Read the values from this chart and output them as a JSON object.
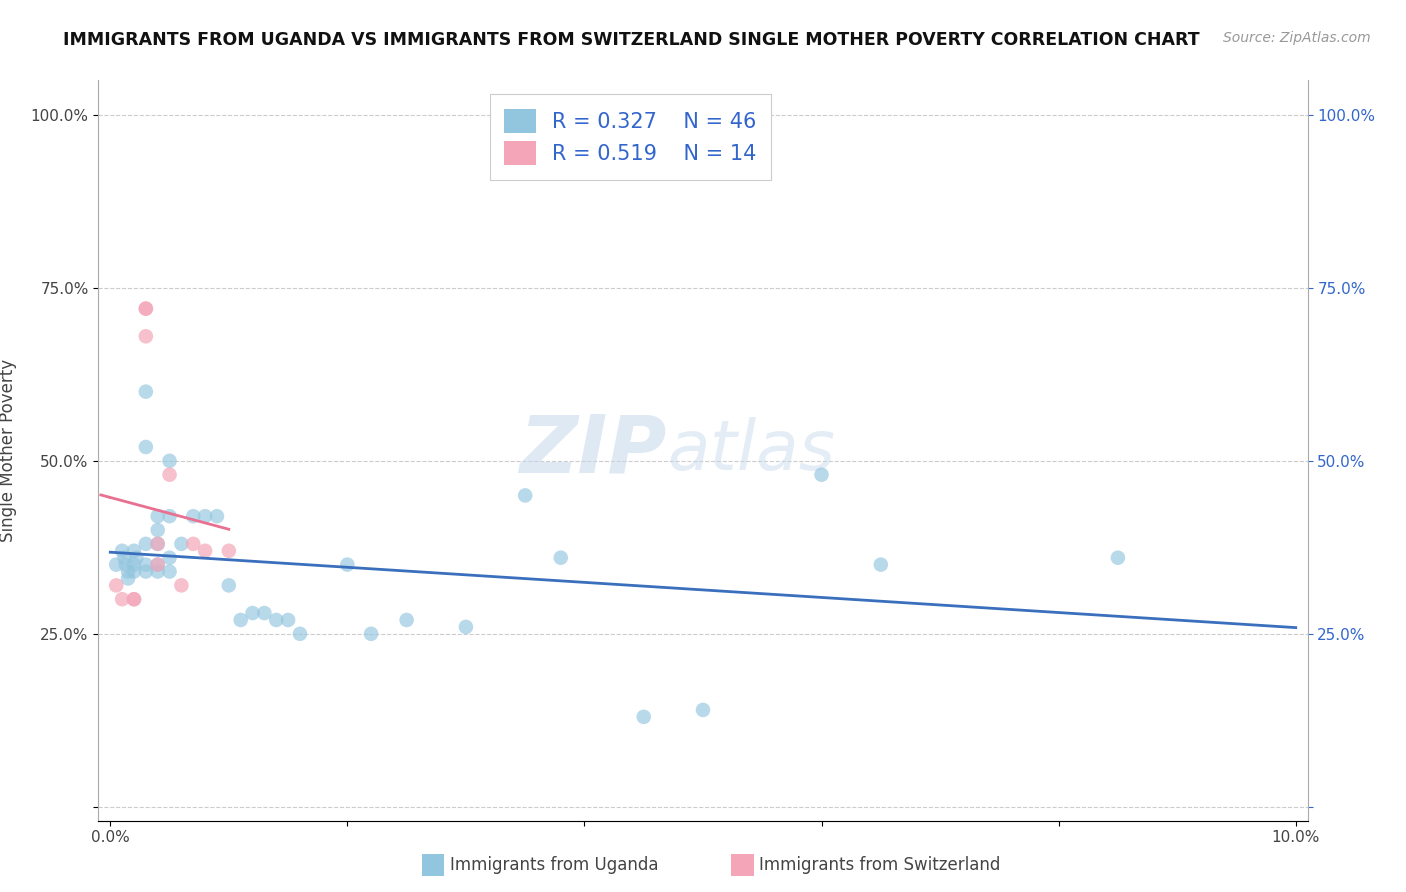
{
  "title": "IMMIGRANTS FROM UGANDA VS IMMIGRANTS FROM SWITZERLAND SINGLE MOTHER POVERTY CORRELATION CHART",
  "source": "Source: ZipAtlas.com",
  "ylabel": "Single Mother Poverty",
  "legend_label1": "Immigrants from Uganda",
  "legend_label2": "Immigrants from Switzerland",
  "r1": 0.327,
  "n1": 46,
  "r2": 0.519,
  "n2": 14,
  "xlim": [
    -0.001,
    0.101
  ],
  "ylim": [
    -0.02,
    1.05
  ],
  "ytick_vals": [
    0.0,
    0.25,
    0.5,
    0.75,
    1.0
  ],
  "ytick_labels_left": [
    "",
    "25.0%",
    "50.0%",
    "75.0%",
    "100.0%"
  ],
  "ytick_labels_right": [
    "",
    "25.0%",
    "50.0%",
    "75.0%",
    "100.0%"
  ],
  "xtick_vals": [
    0.0,
    0.02,
    0.04,
    0.06,
    0.08,
    0.1
  ],
  "xtick_labels": [
    "0.0%",
    "",
    "",
    "",
    "",
    "10.0%"
  ],
  "color_uganda": "#92c5de",
  "color_switzerland": "#f4a6b8",
  "color_line_uganda": "#3a6fbd",
  "color_line_switzerland": "#e87090",
  "watermark_zip": "ZIP",
  "watermark_atlas": "atlas",
  "uganda_x": [
    0.0005,
    0.001,
    0.0012,
    0.0013,
    0.0015,
    0.0015,
    0.002,
    0.002,
    0.002,
    0.0022,
    0.003,
    0.003,
    0.003,
    0.003,
    0.003,
    0.004,
    0.004,
    0.004,
    0.004,
    0.004,
    0.005,
    0.005,
    0.005,
    0.005,
    0.006,
    0.007,
    0.008,
    0.009,
    0.01,
    0.011,
    0.012,
    0.013,
    0.014,
    0.015,
    0.016,
    0.02,
    0.022,
    0.025,
    0.03,
    0.035,
    0.038,
    0.045,
    0.05,
    0.06,
    0.065,
    0.085
  ],
  "uganda_y": [
    0.35,
    0.37,
    0.36,
    0.35,
    0.34,
    0.33,
    0.35,
    0.37,
    0.34,
    0.36,
    0.35,
    0.6,
    0.52,
    0.38,
    0.34,
    0.42,
    0.4,
    0.38,
    0.35,
    0.34,
    0.5,
    0.42,
    0.36,
    0.34,
    0.38,
    0.42,
    0.42,
    0.42,
    0.32,
    0.27,
    0.28,
    0.28,
    0.27,
    0.27,
    0.25,
    0.35,
    0.25,
    0.27,
    0.26,
    0.45,
    0.36,
    0.13,
    0.14,
    0.48,
    0.35,
    0.36
  ],
  "switzerland_x": [
    0.0005,
    0.001,
    0.002,
    0.002,
    0.003,
    0.003,
    0.003,
    0.004,
    0.004,
    0.005,
    0.006,
    0.007,
    0.008,
    0.01
  ],
  "switzerland_y": [
    0.32,
    0.3,
    0.3,
    0.3,
    0.72,
    0.72,
    0.68,
    0.38,
    0.35,
    0.48,
    0.32,
    0.38,
    0.37,
    0.37
  ]
}
